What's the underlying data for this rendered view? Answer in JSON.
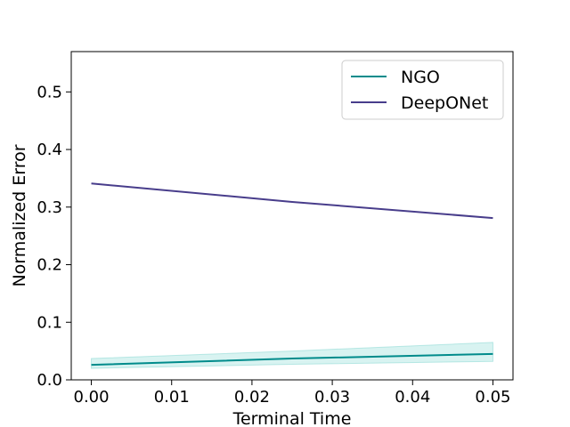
{
  "chart_data": {
    "type": "line",
    "title": "",
    "xlabel": "Terminal Time",
    "ylabel": "Normalized Error",
    "xlim": [
      -0.0025,
      0.0525
    ],
    "ylim": [
      0.0,
      0.57
    ],
    "xticks": [
      0.0,
      0.01,
      0.02,
      0.03,
      0.04,
      0.05
    ],
    "xtick_labels": [
      "0.00",
      "0.01",
      "0.02",
      "0.03",
      "0.04",
      "0.05"
    ],
    "yticks": [
      0.0,
      0.1,
      0.2,
      0.3,
      0.4,
      0.5
    ],
    "ytick_labels": [
      "0.0",
      "0.1",
      "0.2",
      "0.3",
      "0.4",
      "0.5"
    ],
    "grid": false,
    "legend_position": "top-right",
    "series": [
      {
        "name": "NGO",
        "color": "#008b8b",
        "band_color": "#7fd6d0",
        "x": [
          0.0,
          0.025,
          0.05
        ],
        "y": [
          0.026,
          0.037,
          0.045
        ],
        "lower": [
          0.02,
          0.027,
          0.032
        ],
        "upper": [
          0.037,
          0.05,
          0.065
        ]
      },
      {
        "name": "DeepONet",
        "color": "#483d8b",
        "x": [
          0.0,
          0.025,
          0.05
        ],
        "y": [
          0.341,
          0.309,
          0.281
        ]
      }
    ]
  }
}
